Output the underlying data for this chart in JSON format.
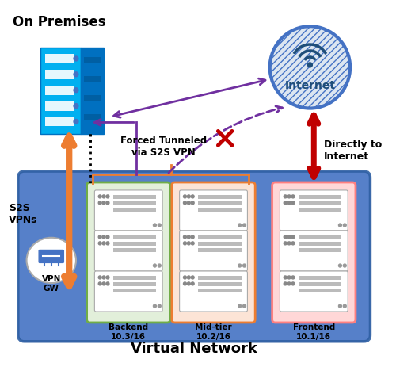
{
  "title": "Virtual Network",
  "on_premises_label": "On Premises",
  "internet_label": "Internet",
  "vpn_gw_label": "VPN\nGW",
  "s2s_label": "S2S\nVPNs",
  "forced_tunnel_label": "Forced Tunneled\nvia S2S VPN",
  "directly_label": "Directly to\nInternet",
  "backend_label": "Backend\n10.3/16",
  "midtier_label": "Mid-tier\n10.2/16",
  "frontend_label": "Frontend\n10.1/16",
  "bg_color": "#ffffff",
  "vnet_color": "#4472c4",
  "vnet_border": "#2e5fa3",
  "backend_border": "#70ad47",
  "backend_fill": "#e2efda",
  "midtier_border": "#ed7d31",
  "midtier_fill": "#fce4d6",
  "frontend_border": "#ff8080",
  "frontend_fill": "#ffd7d7",
  "server_rack_color": "#00b0f0",
  "server_rack_dark": "#0070c0",
  "internet_circle_fill": "#dce6f1",
  "internet_circle_border": "#4472c4",
  "internet_text_color": "#1f4e79",
  "vpn_gw_fill": "#ffffff",
  "vpn_gw_border": "#aaaaaa",
  "orange_arrow_color": "#ed7d31",
  "purple_arrow_color": "#7030a0",
  "red_arrow_color": "#c00000",
  "cross_color": "#c00000",
  "title_fontsize": 13,
  "label_fontsize": 9,
  "small_fontsize": 8
}
